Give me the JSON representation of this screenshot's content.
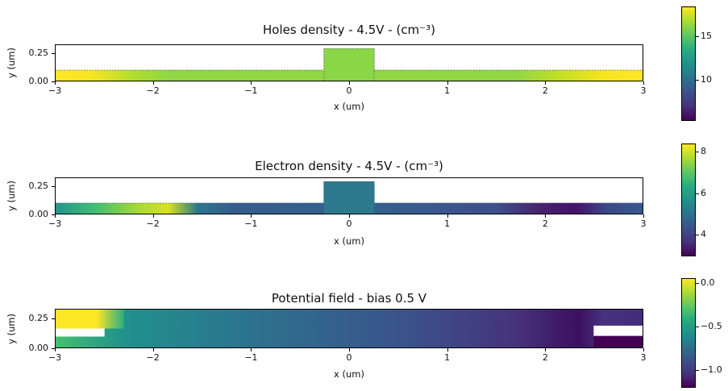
{
  "chart_data": {
    "type": "heatmap",
    "colormap": "viridis",
    "colormap_stops": [
      "#440154",
      "#46327e",
      "#3b528b",
      "#2c728e",
      "#21918c",
      "#27ad81",
      "#5ec962",
      "#aadc32",
      "#fde725"
    ],
    "panels": [
      {
        "title": "Holes density - 4.5V  - (cm⁻³)",
        "xlabel": "x (um)",
        "ylabel": "y (um)",
        "xlim": [
          -3,
          3
        ],
        "ylim": [
          0,
          0.33
        ],
        "xticks": [
          {
            "value": -3,
            "label": "−3"
          },
          {
            "value": -2,
            "label": "−2"
          },
          {
            "value": -1,
            "label": "−1"
          },
          {
            "value": 0,
            "label": "0"
          },
          {
            "value": 1,
            "label": "1"
          },
          {
            "value": 2,
            "label": "2"
          },
          {
            "value": 3,
            "label": "3"
          }
        ],
        "yticks": [
          {
            "value": 0,
            "label": "0.00"
          },
          {
            "value": 0.25,
            "label": "0.25"
          }
        ],
        "layers": [
          {
            "kind": "hgrad",
            "x0": -3,
            "x1": 3,
            "y0": 0,
            "y1": 0.1,
            "edge": "top",
            "stops": [
              {
                "at": -3,
                "color": "#fde725"
              },
              {
                "at": -2.65,
                "color": "#f8e621"
              },
              {
                "at": -2.2,
                "color": "#b0dd2f"
              },
              {
                "at": -1.85,
                "color": "#90d743"
              },
              {
                "at": 1.7,
                "color": "#90d743"
              },
              {
                "at": 2.2,
                "color": "#c8df23"
              },
              {
                "at": 2.6,
                "color": "#f6e620"
              },
              {
                "at": 3,
                "color": "#fde725"
              }
            ]
          },
          {
            "kind": "rect",
            "x0": -0.26,
            "x1": 0.26,
            "y0": 0,
            "y1": 0.3,
            "color": "#8bd646",
            "edge": "outline"
          }
        ],
        "colorbar": {
          "vmin": 5.3,
          "vmax": 18.4,
          "ticks": [
            {
              "value": 15,
              "label": "15"
            },
            {
              "value": 10,
              "label": "10"
            }
          ]
        }
      },
      {
        "title": "Electron density - 4.5V  - (cm⁻³)",
        "xlabel": "x (um)",
        "ylabel": "y (um)",
        "xlim": [
          -3,
          3
        ],
        "ylim": [
          0,
          0.33
        ],
        "xticks": [
          {
            "value": -3,
            "label": "−3"
          },
          {
            "value": -2,
            "label": "−2"
          },
          {
            "value": -1,
            "label": "−1"
          },
          {
            "value": 0,
            "label": "0"
          },
          {
            "value": 1,
            "label": "1"
          },
          {
            "value": 2,
            "label": "2"
          },
          {
            "value": 3,
            "label": "3"
          }
        ],
        "yticks": [
          {
            "value": 0,
            "label": "0.00"
          },
          {
            "value": 0.25,
            "label": "0.25"
          }
        ],
        "layers": [
          {
            "kind": "hgrad",
            "x0": -3,
            "x1": 3,
            "y0": 0,
            "y1": 0.1,
            "edge": "top",
            "stops": [
              {
                "at": -3,
                "color": "#25958d"
              },
              {
                "at": -2.6,
                "color": "#40bd72"
              },
              {
                "at": -2.15,
                "color": "#a8db34"
              },
              {
                "at": -1.85,
                "color": "#d8e219"
              },
              {
                "at": -1.55,
                "color": "#2a788e"
              },
              {
                "at": -1.2,
                "color": "#355e8d"
              },
              {
                "at": 0.35,
                "color": "#35608d"
              },
              {
                "at": 1.5,
                "color": "#3f4f8a"
              },
              {
                "at": 1.95,
                "color": "#46246b"
              },
              {
                "at": 2.3,
                "color": "#45106a"
              },
              {
                "at": 2.65,
                "color": "#3b4a89"
              },
              {
                "at": 3,
                "color": "#38598c"
              }
            ]
          },
          {
            "kind": "rect",
            "x0": -0.26,
            "x1": 0.26,
            "y0": 0,
            "y1": 0.3,
            "color": "#2d798e",
            "edge": "outline"
          }
        ],
        "colorbar": {
          "vmin": 2.97,
          "vmax": 8.38,
          "ticks": [
            {
              "value": 8,
              "label": "8"
            },
            {
              "value": 6,
              "label": "6"
            },
            {
              "value": 4,
              "label": "4"
            }
          ]
        }
      },
      {
        "title": "Potential field - bias 0.5 V",
        "xlabel": "x (um)",
        "ylabel": "y (um)",
        "xlim": [
          -3,
          3
        ],
        "ylim": [
          0,
          0.33
        ],
        "xticks": [
          {
            "value": -3,
            "label": "−3"
          },
          {
            "value": -2,
            "label": "−2"
          },
          {
            "value": -1,
            "label": "−1"
          },
          {
            "value": 0,
            "label": "0"
          },
          {
            "value": 1,
            "label": "1"
          },
          {
            "value": 2,
            "label": "2"
          },
          {
            "value": 3,
            "label": "3"
          }
        ],
        "yticks": [
          {
            "value": 0,
            "label": "0.00"
          },
          {
            "value": 0.25,
            "label": "0.25"
          }
        ],
        "layers": [
          {
            "kind": "hgrad",
            "x0": -3,
            "x1": 3,
            "y0": 0,
            "y1": 0.33,
            "stops": [
              {
                "at": -3,
                "color": "#44bf70"
              },
              {
                "at": -2.3,
                "color": "#21918c"
              },
              {
                "at": -1,
                "color": "#2c728e"
              },
              {
                "at": 0.6,
                "color": "#3b528b"
              },
              {
                "at": 1.7,
                "color": "#46327e"
              },
              {
                "at": 2.35,
                "color": "#3c0f63"
              },
              {
                "at": 2.6,
                "color": "#46327e"
              },
              {
                "at": 3,
                "color": "#432c7a"
              }
            ]
          },
          {
            "kind": "hgrad",
            "x0": -3,
            "x1": -2.3,
            "y0": 0.165,
            "y1": 0.33,
            "stops": [
              {
                "at": -3,
                "color": "#fde725"
              },
              {
                "at": -2.58,
                "color": "#fde725"
              },
              {
                "at": -2.3,
                "color": "#27ad81"
              }
            ]
          },
          {
            "kind": "rect",
            "x0": -3,
            "x1": -2.5,
            "y0": 0.095,
            "y1": 0.165,
            "color": "#ffffff"
          },
          {
            "kind": "rect",
            "x0": 2.5,
            "x1": 3,
            "y0": 0.1,
            "y1": 0.19,
            "color": "#ffffff"
          },
          {
            "kind": "rect",
            "x0": 2.5,
            "x1": 3,
            "y0": 0,
            "y1": 0.1,
            "color": "#440154"
          }
        ],
        "colorbar": {
          "vmin": -1.2,
          "vmax": 0.06,
          "ticks": [
            {
              "value": 0,
              "label": "0.0"
            },
            {
              "value": -0.5,
              "label": "−0.5"
            },
            {
              "value": -1,
              "label": "−1.0"
            }
          ]
        }
      }
    ]
  }
}
